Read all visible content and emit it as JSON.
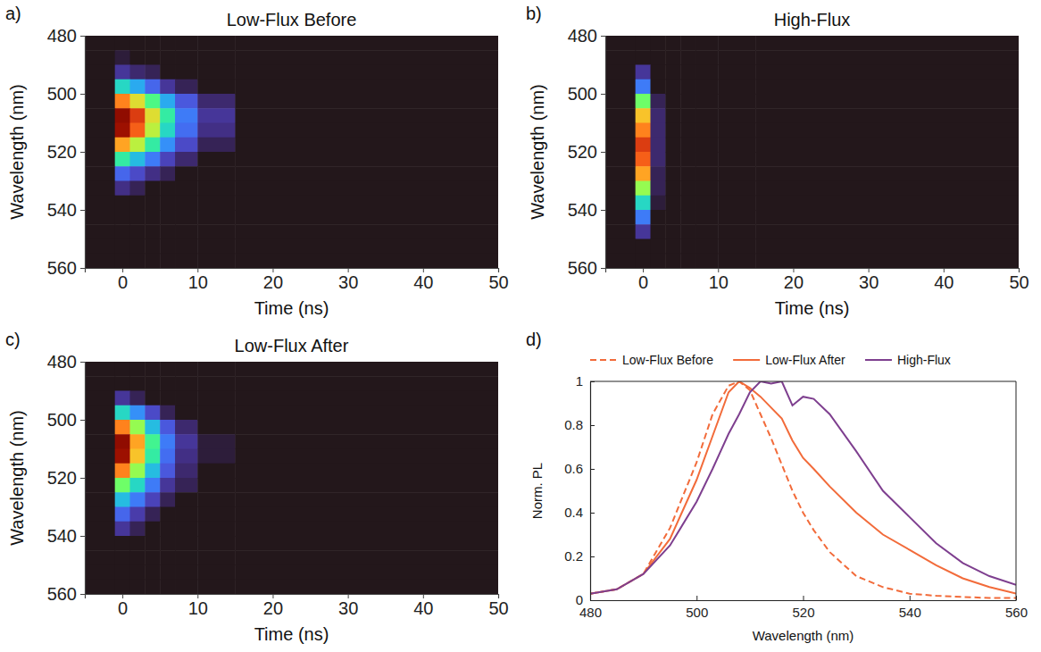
{
  "chart_data": [
    {
      "type": "heatmap",
      "panel": "a)",
      "title": "Low-Flux Before",
      "x_label": "Time (ns)",
      "y_label": "Wavelength (nm)",
      "xlim": [
        -5,
        50
      ],
      "xticks": [
        0,
        10,
        20,
        30,
        40,
        50
      ],
      "ylim": [
        480,
        560
      ],
      "yticks": [
        480,
        500,
        520,
        540,
        560
      ],
      "grid": false,
      "zlim": [
        0,
        1
      ],
      "x_edges": [
        -5,
        -1,
        1,
        3,
        5,
        7,
        10,
        15,
        50
      ],
      "y_edges": [
        480,
        485,
        490,
        495,
        500,
        505,
        510,
        515,
        520,
        525,
        530,
        535,
        540,
        545,
        550,
        555,
        560
      ],
      "cells": [
        [
          0,
          0,
          0,
          0,
          0,
          0,
          0,
          0
        ],
        [
          0,
          0.01,
          0,
          0,
          0,
          0,
          0,
          0
        ],
        [
          0,
          0.05,
          0.03,
          0.02,
          0,
          0,
          0,
          0
        ],
        [
          0,
          0.3,
          0.22,
          0.12,
          0.05,
          0.02,
          0,
          0
        ],
        [
          0,
          0.75,
          0.6,
          0.4,
          0.22,
          0.1,
          0.03,
          0
        ],
        [
          0,
          1,
          0.85,
          0.6,
          0.35,
          0.15,
          0.05,
          0
        ],
        [
          0,
          0.95,
          0.8,
          0.55,
          0.3,
          0.13,
          0.04,
          0
        ],
        [
          0,
          0.7,
          0.55,
          0.35,
          0.18,
          0.08,
          0.02,
          0
        ],
        [
          0,
          0.35,
          0.25,
          0.15,
          0.07,
          0.03,
          0,
          0
        ],
        [
          0,
          0.12,
          0.08,
          0.04,
          0.02,
          0,
          0,
          0
        ],
        [
          0,
          0.04,
          0.02,
          0,
          0,
          0,
          0,
          0
        ],
        [
          0,
          0,
          0,
          0,
          0,
          0,
          0,
          0
        ],
        [
          0,
          0,
          0,
          0,
          0,
          0,
          0,
          0
        ],
        [
          0,
          0,
          0,
          0,
          0,
          0,
          0,
          0
        ],
        [
          0,
          0,
          0,
          0,
          0,
          0,
          0,
          0
        ],
        [
          0,
          0,
          0,
          0,
          0,
          0,
          0,
          0
        ]
      ]
    },
    {
      "type": "heatmap",
      "panel": "b)",
      "title": "High-Flux",
      "x_label": "Time (ns)",
      "y_label": "Wavelength (nm)",
      "xlim": [
        -5,
        50
      ],
      "xticks": [
        0,
        10,
        20,
        30,
        40,
        50
      ],
      "ylim": [
        480,
        560
      ],
      "yticks": [
        480,
        500,
        520,
        540,
        560
      ],
      "grid": false,
      "zlim": [
        0,
        1
      ],
      "x_edges": [
        -5,
        -1,
        1,
        3,
        5,
        7,
        10,
        15,
        50
      ],
      "y_edges": [
        480,
        485,
        490,
        495,
        500,
        505,
        510,
        515,
        520,
        525,
        530,
        535,
        540,
        545,
        550,
        555,
        560
      ],
      "cells": [
        [
          0,
          0,
          0,
          0,
          0,
          0,
          0,
          0
        ],
        [
          0,
          0,
          0,
          0,
          0,
          0,
          0,
          0
        ],
        [
          0,
          0.05,
          0,
          0,
          0,
          0,
          0,
          0
        ],
        [
          0,
          0.15,
          0,
          0,
          0,
          0,
          0,
          0
        ],
        [
          0,
          0.45,
          0.02,
          0,
          0,
          0,
          0,
          0
        ],
        [
          0,
          0.65,
          0.03,
          0,
          0,
          0,
          0,
          0
        ],
        [
          0,
          0.75,
          0.03,
          0,
          0,
          0,
          0,
          0
        ],
        [
          0,
          0.85,
          0.03,
          0,
          0,
          0,
          0,
          0
        ],
        [
          0,
          0.8,
          0.03,
          0,
          0,
          0,
          0,
          0
        ],
        [
          0,
          0.7,
          0.02,
          0,
          0,
          0,
          0,
          0
        ],
        [
          0,
          0.5,
          0.02,
          0,
          0,
          0,
          0,
          0
        ],
        [
          0,
          0.3,
          0.01,
          0,
          0,
          0,
          0,
          0
        ],
        [
          0,
          0.15,
          0,
          0,
          0,
          0,
          0,
          0
        ],
        [
          0,
          0.05,
          0,
          0,
          0,
          0,
          0,
          0
        ],
        [
          0,
          0,
          0,
          0,
          0,
          0,
          0,
          0
        ],
        [
          0,
          0,
          0,
          0,
          0,
          0,
          0,
          0
        ]
      ]
    },
    {
      "type": "heatmap",
      "panel": "c)",
      "title": "Low-Flux After",
      "x_label": "Time (ns)",
      "y_label": "Wavelength (nm)",
      "xlim": [
        -5,
        50
      ],
      "xticks": [
        0,
        10,
        20,
        30,
        40,
        50
      ],
      "ylim": [
        480,
        560
      ],
      "yticks": [
        480,
        500,
        520,
        540,
        560
      ],
      "grid": false,
      "zlim": [
        0,
        1
      ],
      "x_edges": [
        -5,
        -1,
        1,
        3,
        5,
        7,
        10,
        15,
        50
      ],
      "y_edges": [
        480,
        485,
        490,
        495,
        500,
        505,
        510,
        515,
        520,
        525,
        530,
        535,
        540,
        545,
        550,
        555,
        560
      ],
      "cells": [
        [
          0,
          0,
          0,
          0,
          0,
          0,
          0,
          0
        ],
        [
          0,
          0,
          0,
          0,
          0,
          0,
          0,
          0
        ],
        [
          0,
          0.05,
          0.02,
          0,
          0,
          0,
          0,
          0
        ],
        [
          0,
          0.3,
          0.18,
          0.08,
          0.02,
          0,
          0,
          0
        ],
        [
          0,
          0.75,
          0.5,
          0.25,
          0.1,
          0.03,
          0,
          0
        ],
        [
          0,
          1,
          0.7,
          0.38,
          0.15,
          0.05,
          0.01,
          0
        ],
        [
          0,
          0.95,
          0.65,
          0.35,
          0.13,
          0.04,
          0.01,
          0
        ],
        [
          0,
          0.75,
          0.5,
          0.25,
          0.1,
          0.03,
          0,
          0
        ],
        [
          0,
          0.45,
          0.3,
          0.15,
          0.05,
          0.02,
          0,
          0
        ],
        [
          0,
          0.25,
          0.15,
          0.07,
          0.02,
          0,
          0,
          0
        ],
        [
          0,
          0.12,
          0.06,
          0.02,
          0,
          0,
          0,
          0
        ],
        [
          0,
          0.05,
          0.02,
          0,
          0,
          0,
          0,
          0
        ],
        [
          0,
          0,
          0,
          0,
          0,
          0,
          0,
          0
        ],
        [
          0,
          0,
          0,
          0,
          0,
          0,
          0,
          0
        ],
        [
          0,
          0,
          0,
          0,
          0,
          0,
          0,
          0
        ],
        [
          0,
          0,
          0,
          0,
          0,
          0,
          0,
          0
        ]
      ]
    },
    {
      "type": "line",
      "panel": "d)",
      "x_label": "Wavelength (nm)",
      "y_label": "Norm. PL",
      "xlim": [
        480,
        560
      ],
      "xticks": [
        480,
        500,
        520,
        540,
        560
      ],
      "ylim": [
        0,
        1
      ],
      "yticks": [
        0,
        0.2,
        0.4,
        0.6,
        0.8,
        1
      ],
      "grid": false,
      "legend": "top",
      "x": [
        480,
        485,
        490,
        495,
        500,
        503,
        506,
        508,
        510,
        512,
        514,
        516,
        518,
        520,
        522,
        525,
        530,
        535,
        540,
        545,
        550,
        555,
        560
      ],
      "series": [
        {
          "name": "Low-Flux Before",
          "color": "#f26b3a",
          "line_style": "dashed",
          "values": [
            0.03,
            0.05,
            0.12,
            0.33,
            0.63,
            0.85,
            0.98,
            1,
            0.96,
            0.85,
            0.74,
            0.62,
            0.5,
            0.4,
            0.32,
            0.22,
            0.11,
            0.06,
            0.03,
            0.02,
            0.015,
            0.01,
            0.01
          ]
        },
        {
          "name": "Low-Flux After",
          "color": "#f26b3a",
          "line_style": "solid",
          "values": [
            0.03,
            0.05,
            0.12,
            0.28,
            0.55,
            0.75,
            0.95,
            1,
            0.97,
            0.93,
            0.88,
            0.83,
            0.73,
            0.65,
            0.6,
            0.52,
            0.4,
            0.3,
            0.23,
            0.16,
            0.1,
            0.06,
            0.03
          ]
        },
        {
          "name": "High-Flux",
          "color": "#7e3f8f",
          "line_style": "solid",
          "values": [
            0.03,
            0.05,
            0.12,
            0.25,
            0.45,
            0.6,
            0.76,
            0.85,
            0.95,
            1,
            0.99,
            1,
            0.89,
            0.93,
            0.92,
            0.85,
            0.68,
            0.5,
            0.38,
            0.26,
            0.17,
            0.11,
            0.07
          ]
        }
      ]
    }
  ]
}
